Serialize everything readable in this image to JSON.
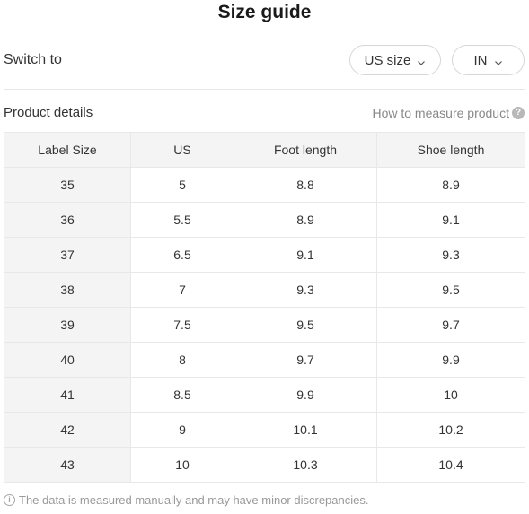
{
  "header": {
    "title": "Size guide"
  },
  "switch": {
    "label": "Switch to",
    "size_system": "US size",
    "unit": "IN",
    "chevron_icon": "chevron-down-icon"
  },
  "details": {
    "label": "Product details",
    "measure_link": "How to measure product",
    "help_icon": "question-circle-icon"
  },
  "table": {
    "headers": [
      "Label Size",
      "US",
      "Foot length",
      "Shoe length"
    ],
    "rows": [
      [
        "35",
        "5",
        "8.8",
        "8.9"
      ],
      [
        "36",
        "5.5",
        "8.9",
        "9.1"
      ],
      [
        "37",
        "6.5",
        "9.1",
        "9.3"
      ],
      [
        "38",
        "7",
        "9.3",
        "9.5"
      ],
      [
        "39",
        "7.5",
        "9.5",
        "9.7"
      ],
      [
        "40",
        "8",
        "9.7",
        "9.9"
      ],
      [
        "41",
        "8.5",
        "9.9",
        "10"
      ],
      [
        "42",
        "9",
        "10.1",
        "10.2"
      ],
      [
        "43",
        "10",
        "10.3",
        "10.4"
      ]
    ]
  },
  "footer": {
    "note": "The data is measured manually and may have minor discrepancies.",
    "info_icon": "info-circle-icon"
  }
}
